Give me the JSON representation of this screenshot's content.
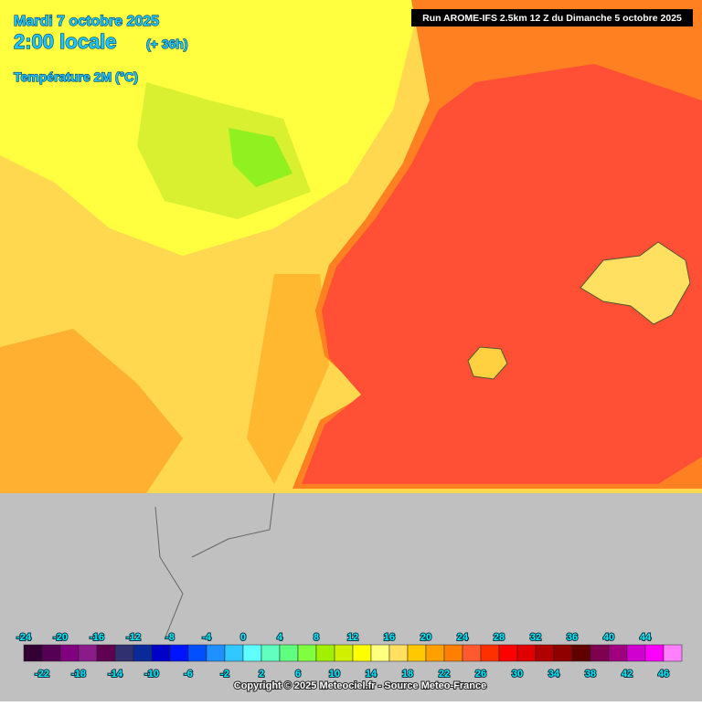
{
  "header": {
    "date": "Mardi 7 octobre 2025",
    "time": "2:00 locale",
    "lead": "(+ 36h)",
    "variable": "Température 2M (°C)"
  },
  "run_info": "Run AROME-IFS 2.5km 12 Z du Dimanche 5 octobre 2025",
  "legend": {
    "ticks": [
      "-24",
      "-22",
      "-20",
      "-18",
      "-16",
      "-14",
      "-12",
      "-10",
      "-8",
      "-6",
      "-4",
      "-2",
      "0",
      "2",
      "4",
      "6",
      "8",
      "10",
      "12",
      "14",
      "16",
      "18",
      "20",
      "22",
      "24",
      "26",
      "28",
      "30",
      "32",
      "34",
      "36",
      "38",
      "40",
      "42",
      "44",
      "46"
    ],
    "colors": [
      "#330033",
      "#550055",
      "#800080",
      "#8b1a8b",
      "#600050",
      "#303070",
      "#0a2a9a",
      "#0000c8",
      "#0014ff",
      "#0050ff",
      "#1e90ff",
      "#30c8ff",
      "#60ffff",
      "#60ffc0",
      "#60ff80",
      "#80ff40",
      "#a0f000",
      "#d0f000",
      "#ffff00",
      "#ffff80",
      "#ffe060",
      "#ffc800",
      "#ffa000",
      "#ff8000",
      "#ff5a30",
      "#ff3000",
      "#ff0000",
      "#e00000",
      "#b00000",
      "#900000",
      "#600000",
      "#800050",
      "#a00080",
      "#d000d0",
      "#ff00ff",
      "#ff80ff"
    ]
  },
  "copyright": "Copyright © 2025 Meteociel.fr - Source Meteo-France"
}
